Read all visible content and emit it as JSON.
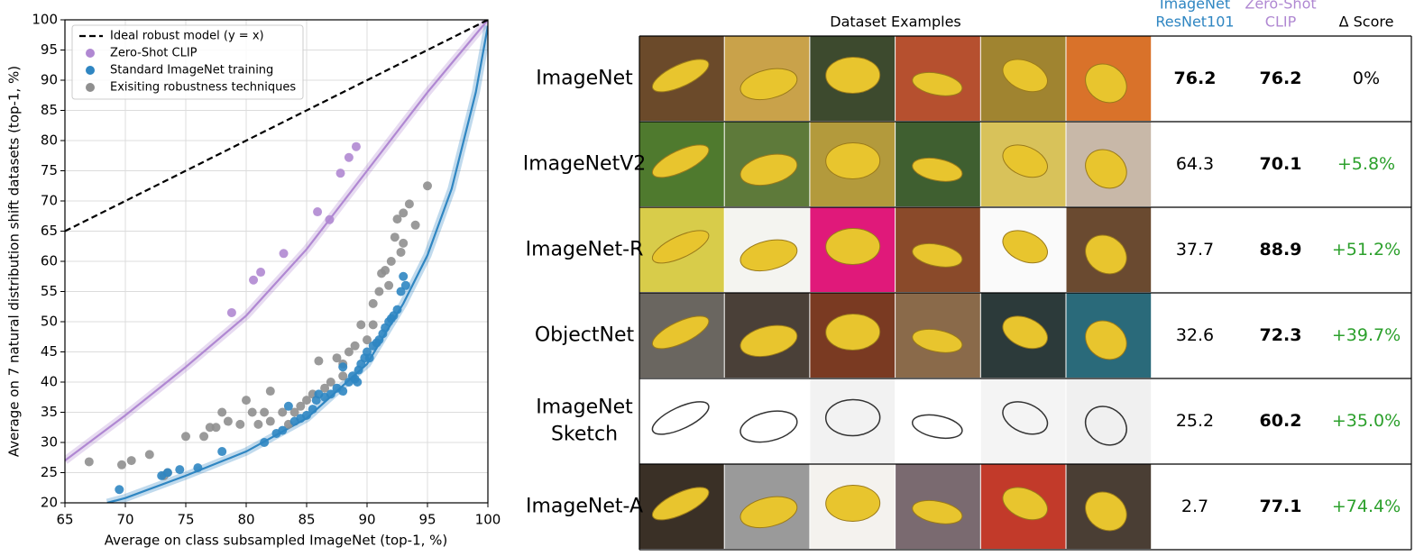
{
  "chart_data": {
    "type": "scatter",
    "xlabel": "Average on class subsampled ImageNet (top-1, %)",
    "ylabel": "Average on 7 natural distribution shift datasets (top-1, %)",
    "xlim": [
      65,
      100
    ],
    "ylim": [
      20,
      100
    ],
    "xticks": [
      65,
      70,
      75,
      80,
      85,
      90,
      95,
      100
    ],
    "yticks": [
      20,
      25,
      30,
      35,
      40,
      45,
      50,
      55,
      60,
      65,
      70,
      75,
      80,
      85,
      90,
      95,
      100
    ],
    "grid": true,
    "legend": "upper-left",
    "series": [
      {
        "name": "Ideal robust model (y = x)",
        "color": "#000000",
        "style": "dashed",
        "x": [
          65,
          100
        ],
        "y": [
          65,
          100
        ]
      },
      {
        "name": "Zero-Shot CLIP",
        "color": "#b088d2",
        "style": "points",
        "x": [
          78.8,
          80.6,
          81.2,
          83.1,
          86.9,
          85.9,
          87.8,
          88.5,
          89.1
        ],
        "y": [
          51.5,
          56.9,
          58.2,
          61.3,
          66.9,
          68.2,
          74.6,
          77.2,
          79.0
        ]
      },
      {
        "name": "Standard ImageNet training",
        "color": "#2f86c2",
        "style": "points",
        "x": [
          69.5,
          73,
          73.5,
          74.5,
          76,
          78,
          81.5,
          82.5,
          83,
          83.5,
          84,
          84.5,
          85,
          85.5,
          85.8,
          86,
          86.5,
          87,
          87.5,
          88,
          88.5,
          88.8,
          89,
          89.3,
          89.5,
          89.8,
          90,
          90.2,
          90.5,
          90.8,
          91,
          91.3,
          91.5,
          91.8,
          92,
          92.2,
          92.5,
          92.8,
          93,
          93.2,
          89.2,
          88
        ],
        "y": [
          22.2,
          24.5,
          25,
          25.5,
          25.8,
          28.5,
          30,
          31.5,
          32,
          36,
          33.5,
          34,
          34.5,
          35.5,
          37,
          38,
          37.5,
          38,
          39,
          38.5,
          40,
          41,
          40.5,
          42,
          43,
          44,
          45,
          44,
          46,
          46.5,
          47,
          48,
          49,
          50,
          50.5,
          51,
          52,
          55,
          57.5,
          56,
          40,
          42.5
        ]
      },
      {
        "name": "Exisiting robustness techniques",
        "color": "#8f8f8f",
        "style": "points",
        "x": [
          67,
          69.7,
          70.5,
          72,
          73.2,
          73.5,
          75,
          76.5,
          77,
          77.5,
          78,
          78.5,
          79.5,
          80,
          80.5,
          81,
          81.5,
          82,
          82,
          83,
          83.5,
          84,
          84.5,
          85,
          85.5,
          86,
          86.5,
          87,
          87.5,
          88,
          88.5,
          89,
          89.5,
          90,
          90.5,
          91,
          91.2,
          91.5,
          91.8,
          92,
          92.3,
          92.5,
          93,
          93,
          93.5,
          94,
          95,
          92.8,
          90.5,
          88
        ],
        "y": [
          26.8,
          26.3,
          27,
          28,
          24.5,
          25,
          31,
          31,
          32.5,
          32.5,
          35,
          33.5,
          33,
          37,
          35,
          33,
          35,
          38.5,
          33.5,
          35,
          33,
          35,
          36,
          37,
          38,
          43.5,
          39,
          40,
          44,
          43,
          45,
          46,
          49.5,
          47,
          53,
          55,
          58,
          58.5,
          56,
          60,
          64,
          67,
          63,
          68,
          69.5,
          66,
          72.5,
          61.5,
          49.5,
          41
        ]
      }
    ],
    "fit_curves": [
      {
        "color": "#b088d2",
        "x": [
          65,
          70,
          75,
          80,
          85,
          90,
          95,
          100
        ],
        "y": [
          27,
          34.5,
          42.5,
          51,
          62,
          75,
          88,
          100
        ]
      },
      {
        "color": "#2f86c2",
        "x": [
          68.5,
          70,
          75,
          80,
          85,
          90,
          93,
          95,
          97,
          99,
          100
        ],
        "y": [
          20,
          20.8,
          24.5,
          28.5,
          34,
          43,
          53,
          61,
          72,
          88,
          99
        ]
      }
    ]
  },
  "table": {
    "title": "Dataset Examples",
    "columns": [
      [
        "ImageNet",
        "ResNet101"
      ],
      [
        "Zero-Shot",
        "CLIP"
      ],
      [
        "Δ Score"
      ]
    ],
    "rows": [
      {
        "name": [
          "ImageNet"
        ],
        "resnet": "76.2",
        "clip": "76.2",
        "delta": "0%"
      },
      {
        "name": [
          "ImageNetV2"
        ],
        "resnet": "64.3",
        "clip": "70.1",
        "delta": "+5.8%"
      },
      {
        "name": [
          "ImageNet-R"
        ],
        "resnet": "37.7",
        "clip": "88.9",
        "delta": "+51.2%"
      },
      {
        "name": [
          "ObjectNet"
        ],
        "resnet": "32.6",
        "clip": "72.3",
        "delta": "+39.7%"
      },
      {
        "name": [
          "ImageNet",
          "Sketch"
        ],
        "resnet": "25.2",
        "clip": "60.2",
        "delta": "+35.0%"
      },
      {
        "name": [
          "ImageNet-A"
        ],
        "resnet": "2.7",
        "clip": "77.1",
        "delta": "+74.4%"
      }
    ]
  }
}
